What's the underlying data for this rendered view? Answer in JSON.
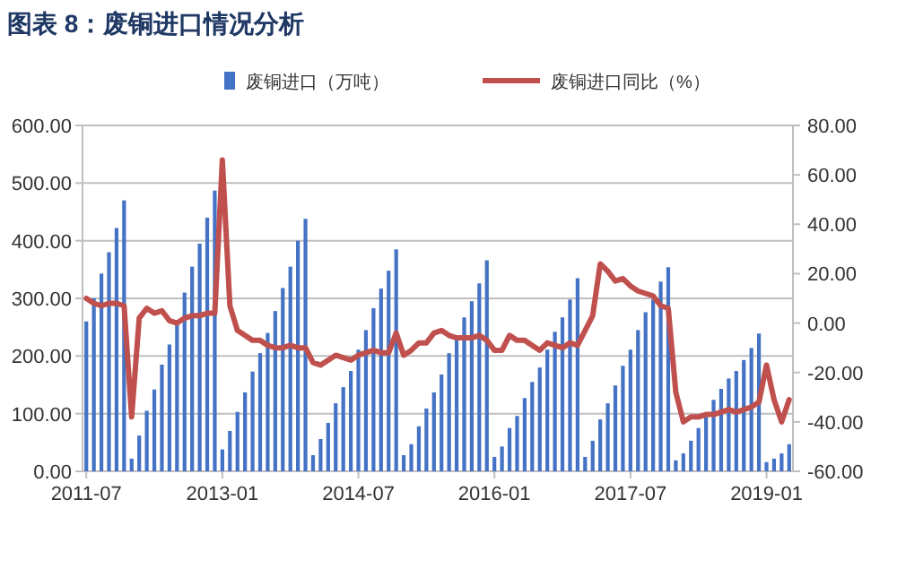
{
  "chart_data": {
    "type": "bar",
    "title": "图表 8：废铜进口情况分析",
    "categories": [
      "2011-07",
      null,
      null,
      null,
      null,
      null,
      null,
      null,
      null,
      null,
      null,
      null,
      null,
      null,
      null,
      null,
      null,
      null,
      "2013-01",
      null,
      null,
      null,
      null,
      null,
      null,
      null,
      null,
      null,
      null,
      null,
      null,
      null,
      null,
      null,
      null,
      null,
      "2014-07",
      null,
      null,
      null,
      null,
      null,
      null,
      null,
      null,
      null,
      null,
      null,
      null,
      null,
      null,
      null,
      null,
      null,
      "2016-01",
      null,
      null,
      null,
      null,
      null,
      null,
      null,
      null,
      null,
      null,
      null,
      null,
      null,
      null,
      null,
      null,
      null,
      "2017-07",
      null,
      null,
      null,
      null,
      null,
      null,
      null,
      null,
      null,
      null,
      null,
      null,
      null,
      null,
      null,
      null,
      null,
      "2019-01",
      null,
      null,
      null
    ],
    "series": [
      {
        "name": "废铜进口（万吨）",
        "color": "#4472c4",
        "values": [
          260,
          300,
          343,
          380,
          422,
          470,
          22,
          62,
          105,
          142,
          185,
          220,
          262,
          310,
          355,
          395,
          440,
          487,
          38,
          70,
          103,
          137,
          173,
          205,
          240,
          278,
          318,
          355,
          400,
          438,
          28,
          56,
          84,
          118,
          146,
          174,
          211,
          245,
          283,
          317,
          348,
          385,
          28,
          47,
          78,
          109,
          137,
          168,
          205,
          233,
          267,
          295,
          326,
          366,
          25,
          43,
          75,
          96,
          127,
          155,
          180,
          211,
          242,
          267,
          298,
          335,
          25,
          53,
          90,
          118,
          149,
          183,
          211,
          245,
          276,
          298,
          329,
          354,
          19,
          31,
          53,
          75,
          99,
          124,
          143,
          161,
          174,
          193,
          214,
          239,
          16,
          22,
          31,
          47
        ]
      },
      {
        "name": "废铜进口同比（%）",
        "type": "line",
        "axis": "y2",
        "color": "#c0504d",
        "values": [
          10,
          8,
          7,
          8,
          8,
          7,
          -38,
          2,
          6,
          4,
          5,
          1,
          0,
          2,
          3,
          3,
          4,
          4,
          66,
          7,
          -3,
          -5,
          -7,
          -7,
          -9,
          -10,
          -10,
          -9,
          -10,
          -10,
          -16,
          -17,
          -15,
          -13,
          -14,
          -15,
          -13,
          -12,
          -11,
          -12,
          -12,
          -4,
          -13,
          -11,
          -8,
          -8,
          -4,
          -3,
          -5,
          -6,
          -6,
          -6,
          -5,
          -7,
          -11,
          -11,
          -5,
          -7,
          -7,
          -9,
          -11,
          -8,
          -9,
          -10,
          -8,
          -9,
          -3,
          3,
          24,
          21,
          17,
          18,
          15,
          13,
          12,
          11,
          7,
          6,
          -28,
          -40,
          -38,
          -38,
          -37,
          -37,
          -36,
          -35,
          -36,
          -35,
          -34,
          -32,
          -17,
          -31,
          -40,
          -31
        ]
      }
    ],
    "ylim": [
      0,
      600
    ],
    "yticks": [
      {
        "value": 0,
        "label": "0.00"
      },
      {
        "value": 100,
        "label": "100.00"
      },
      {
        "value": 200,
        "label": "200.00"
      },
      {
        "value": 300,
        "label": "300.00"
      },
      {
        "value": 400,
        "label": "400.00"
      },
      {
        "value": 500,
        "label": "500.00"
      },
      {
        "value": 600,
        "label": "600.00"
      }
    ],
    "y2lim": [
      -60,
      80
    ],
    "y2ticks": [
      {
        "value": -60,
        "label": "-60.00"
      },
      {
        "value": -40,
        "label": "-40.00"
      },
      {
        "value": -20,
        "label": "-20.00"
      },
      {
        "value": 0,
        "label": "0.00"
      },
      {
        "value": 20,
        "label": "20.00"
      },
      {
        "value": 40,
        "label": "40.00"
      },
      {
        "value": 60,
        "label": "60.00"
      },
      {
        "value": 80,
        "label": "80.00"
      }
    ],
    "grid": "y",
    "legend": "top",
    "marker": "none",
    "line_style": "solid"
  }
}
